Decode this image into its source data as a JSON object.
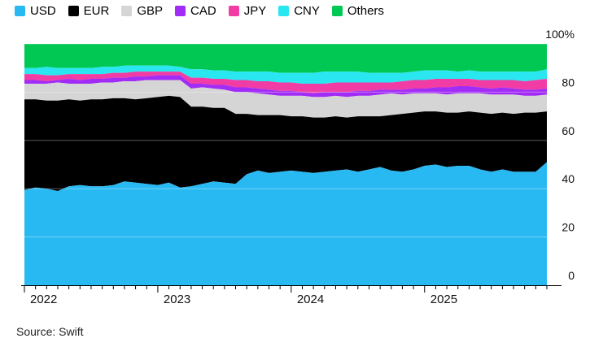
{
  "colors": {
    "USD": "#29b9f2",
    "EUR": "#000000",
    "GBP": "#d5d5d5",
    "CAD": "#a12cf5",
    "JPY": "#f03ca4",
    "CNY": "#2ae6f0",
    "Others": "#00c853"
  },
  "source": "Source: Swift",
  "chart_data": {
    "type": "area",
    "stacked": true,
    "x_unit": "month index from Jan 2022",
    "x_tick_labels": [
      {
        "x": 0,
        "label": "2022"
      },
      {
        "x": 12,
        "label": "2023"
      },
      {
        "x": 24,
        "label": "2024"
      },
      {
        "x": 36,
        "label": "2025"
      }
    ],
    "x_range": [
      0,
      47
    ],
    "ylim": [
      0,
      100
    ],
    "y_ticks": [
      0,
      20,
      40,
      60,
      80,
      100
    ],
    "y_tick_labels": [
      "0",
      "20",
      "40",
      "60",
      "80",
      "100%"
    ],
    "legend_position": "top",
    "grid": true,
    "series": [
      {
        "name": "USD",
        "cumulative": [
          39.5,
          40.5,
          40,
          39,
          41,
          41.5,
          41,
          41,
          41.5,
          43,
          42.5,
          42,
          41.5,
          42.5,
          40.5,
          41,
          42,
          43,
          42.5,
          42,
          46,
          47.5,
          46.5,
          47,
          47.5,
          47,
          46.5,
          47,
          47.5,
          48,
          47,
          48,
          49,
          47.5,
          47,
          48,
          49.5,
          50,
          49,
          49.5,
          49.5,
          48,
          47,
          48,
          47,
          47,
          47,
          51
        ]
      },
      {
        "name": "EUR",
        "cumulative": [
          77,
          77,
          76.5,
          76.5,
          77,
          76.5,
          77,
          77,
          77.5,
          77.5,
          77,
          77.5,
          78,
          78.5,
          78,
          74,
          74,
          73.5,
          73.5,
          71,
          71,
          70.5,
          70.5,
          70.5,
          70,
          70,
          69.5,
          69.5,
          70,
          69.5,
          70,
          70,
          70,
          70.5,
          71,
          71.5,
          72,
          72,
          71.5,
          71.5,
          72,
          71.5,
          71,
          71.5,
          71,
          71.5,
          71.5,
          72
        ]
      },
      {
        "name": "GBP",
        "cumulative": [
          83.5,
          83.5,
          83.5,
          84,
          83.5,
          83.5,
          83.5,
          84,
          84,
          84.5,
          84.5,
          85,
          85,
          85,
          85,
          81.5,
          82,
          81.5,
          81,
          80,
          80,
          79.5,
          79,
          78.5,
          78.5,
          78.5,
          78,
          78,
          78.5,
          78,
          78.5,
          78.5,
          79,
          79.5,
          79,
          79.5,
          79.5,
          79.5,
          79,
          79.5,
          79.5,
          79.5,
          79,
          79,
          79,
          78.5,
          78.5,
          79
        ]
      },
      {
        "name": "CAD",
        "cumulative": [
          85,
          85,
          84.5,
          85,
          85.5,
          85,
          85.5,
          85.5,
          86,
          86,
          86.5,
          86.5,
          87,
          87,
          87,
          83.5,
          83.5,
          83,
          83,
          82,
          82,
          81.5,
          81,
          80.5,
          80.5,
          80,
          79.5,
          80,
          80,
          80,
          80.5,
          80.5,
          81,
          81,
          81,
          81.5,
          81.5,
          82,
          82,
          82.5,
          82.5,
          82,
          81.5,
          82,
          81.5,
          81,
          81,
          81.5
        ]
      },
      {
        "name": "JPY",
        "cumulative": [
          87.5,
          87.5,
          87,
          87,
          87.5,
          87.5,
          87.5,
          87.5,
          88,
          88,
          88.5,
          88.5,
          88.5,
          88.5,
          88.5,
          86,
          86,
          85.5,
          85.5,
          85,
          85,
          84.5,
          84.5,
          84,
          84,
          83.5,
          83.5,
          83.5,
          84,
          84,
          84,
          84,
          84,
          84,
          84.5,
          85,
          85,
          85.5,
          85.5,
          85.5,
          85.5,
          85,
          85,
          85,
          85,
          84.5,
          85,
          85.5
        ]
      },
      {
        "name": "CNY",
        "cumulative": [
          90,
          90,
          90.5,
          90,
          90,
          90,
          90,
          90.5,
          90.5,
          91,
          91,
          91,
          91,
          91,
          90.5,
          89.5,
          89.5,
          89,
          89,
          88.5,
          88.5,
          88.5,
          88.5,
          88,
          88,
          88,
          88,
          88.5,
          88.5,
          88.5,
          88.5,
          88,
          88,
          88,
          88,
          88.5,
          89,
          89,
          89,
          88.5,
          89,
          88.5,
          88.5,
          88.5,
          88.5,
          88.5,
          88.5,
          89.5
        ]
      },
      {
        "name": "Others",
        "cumulative": [
          100,
          100,
          100,
          100,
          100,
          100,
          100,
          100,
          100,
          100,
          100,
          100,
          100,
          100,
          100,
          100,
          100,
          100,
          100,
          100,
          100,
          100,
          100,
          100,
          100,
          100,
          100,
          100,
          100,
          100,
          100,
          100,
          100,
          100,
          100,
          100,
          100,
          100,
          100,
          100,
          100,
          100,
          100,
          100,
          100,
          100,
          100,
          100
        ]
      }
    ]
  }
}
